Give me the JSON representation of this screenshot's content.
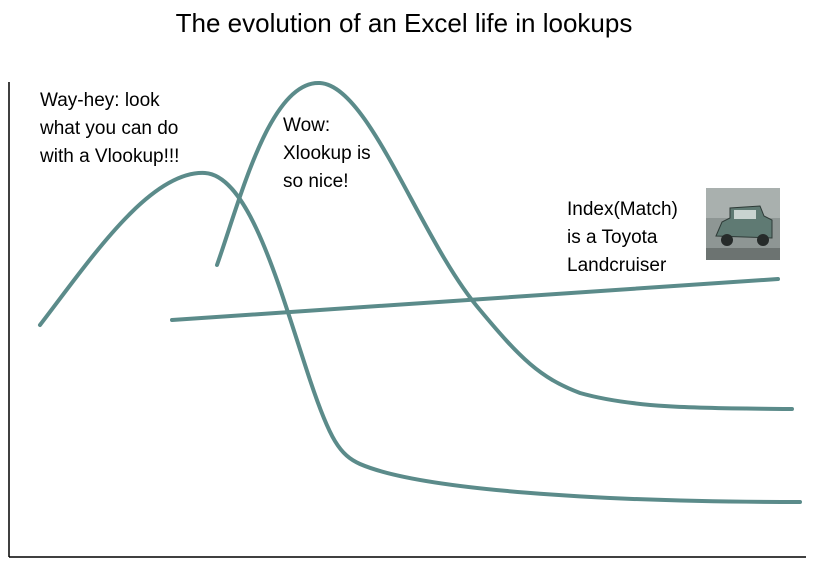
{
  "title": "The evolution of an Excel life in lookups",
  "annotations": [
    {
      "lines": [
        "Way-hey: look",
        "what you can do",
        "with a Vlookup!!!"
      ]
    },
    {
      "lines": [
        "Wow:",
        "Xlookup is",
        "so nice!"
      ]
    },
    {
      "lines": [
        "Index(Match)",
        "is a Toyota",
        "Landcruiser"
      ]
    }
  ]
}
